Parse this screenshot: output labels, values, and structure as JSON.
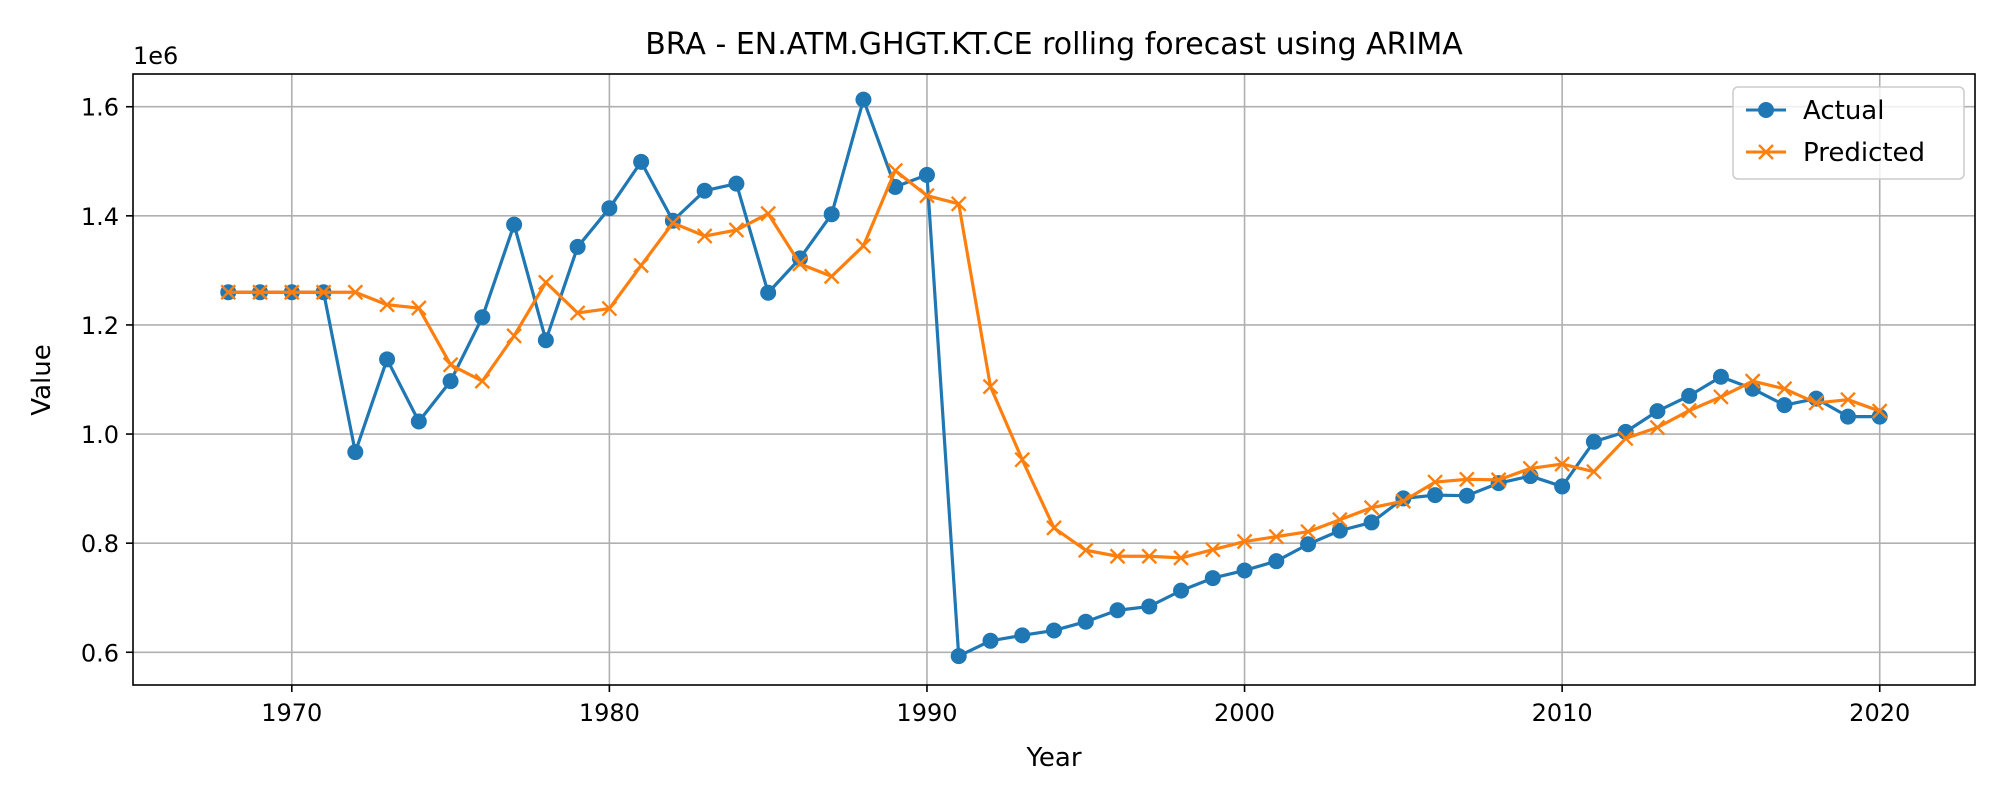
{
  "chart_data": {
    "type": "line",
    "title": "BRA - EN.ATM.GHGT.KT.CE rolling forecast using ARIMA",
    "xlabel": "Year",
    "ylabel": "Value",
    "y_offset_label": "1e6",
    "xlim": [
      1965,
      2023
    ],
    "ylim": [
      540000,
      1660000
    ],
    "x_ticks": [
      1970,
      1980,
      1990,
      2000,
      2010,
      2020
    ],
    "y_ticks": [
      600000,
      800000,
      1000000,
      1200000,
      1400000,
      1600000
    ],
    "y_tick_labels": [
      "0.6",
      "0.8",
      "1.0",
      "1.2",
      "1.4",
      "1.6"
    ],
    "grid": true,
    "legend_position": "top-right",
    "x": [
      1968,
      1969,
      1970,
      1971,
      1972,
      1973,
      1974,
      1975,
      1976,
      1977,
      1978,
      1979,
      1980,
      1981,
      1982,
      1983,
      1984,
      1985,
      1986,
      1987,
      1988,
      1989,
      1990,
      1991,
      1992,
      1993,
      1994,
      1995,
      1996,
      1997,
      1998,
      1999,
      2000,
      2001,
      2002,
      2003,
      2004,
      2005,
      2006,
      2007,
      2008,
      2009,
      2010,
      2011,
      2012,
      2013,
      2014,
      2015,
      2016,
      2017,
      2018,
      2019,
      2020
    ],
    "series": [
      {
        "name": "Actual",
        "color": "#1f77b4",
        "marker": "circle",
        "values": [
          1260000,
          1260000,
          1260000,
          1260000,
          967000,
          1137000,
          1023000,
          1097000,
          1214000,
          1384000,
          1172000,
          1343000,
          1414000,
          1499000,
          1391000,
          1446000,
          1459000,
          1259000,
          1322000,
          1403000,
          1613000,
          1453000,
          1475000,
          593000,
          621000,
          631000,
          640000,
          656000,
          677000,
          684000,
          713000,
          736000,
          750000,
          767000,
          798000,
          823000,
          838000,
          882000,
          888000,
          887000,
          910000,
          923000,
          904000,
          986000,
          1004000,
          1042000,
          1070000,
          1105000,
          1083000,
          1053000,
          1065000,
          1032000,
          1032000
        ]
      },
      {
        "name": "Predicted",
        "color": "#ff7f0e",
        "marker": "x",
        "values": [
          1260000,
          1260000,
          1260000,
          1260000,
          1260000,
          1237000,
          1231000,
          1127000,
          1097000,
          1180000,
          1278000,
          1222000,
          1230000,
          1309000,
          1387000,
          1363000,
          1374000,
          1404000,
          1312000,
          1289000,
          1345000,
          1483000,
          1437000,
          1422000,
          1087000,
          953000,
          828000,
          787000,
          776000,
          776000,
          773000,
          788000,
          803000,
          812000,
          821000,
          843000,
          865000,
          877000,
          912000,
          917000,
          916000,
          937000,
          945000,
          931000,
          992000,
          1012000,
          1043000,
          1068000,
          1097000,
          1083000,
          1057000,
          1063000,
          1042000
        ]
      }
    ]
  }
}
